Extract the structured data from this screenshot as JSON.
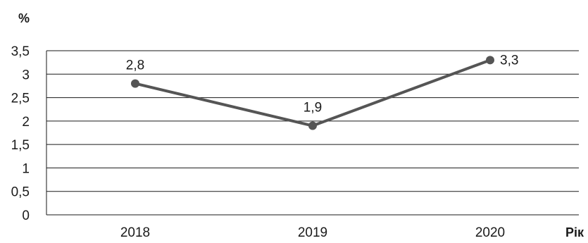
{
  "chart_data": {
    "type": "line",
    "ylabel": "%",
    "xlabel": "Рік",
    "categories": [
      "2018",
      "2019",
      "2020"
    ],
    "series": [
      {
        "values": [
          2.8,
          1.9,
          3.3
        ],
        "data_labels": [
          "2,8",
          "1,9",
          "3,3"
        ]
      }
    ],
    "ylim": [
      0,
      3.5
    ],
    "y_ticks": [
      0,
      0.5,
      1,
      1.5,
      2,
      2.5,
      3,
      3.5
    ],
    "y_tick_labels": [
      "0",
      "0,5",
      "1",
      "1,5",
      "2",
      "2,5",
      "3",
      "3,5"
    ],
    "grid": true,
    "colors": {
      "line": "#555555",
      "marker": "#555555",
      "grid": "#1a1a1a",
      "text": "#1a1a1a"
    }
  }
}
